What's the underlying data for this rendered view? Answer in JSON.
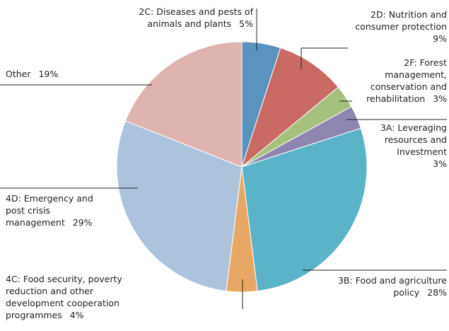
{
  "chart_data": {
    "type": "pie",
    "categories": [
      "2C: Diseases and pests of animals and plants",
      "2D: Nutrition and consumer protection",
      "2F: Forest management, conservation and rehabilitation",
      "3A: Leveraging resources and Investment",
      "3B: Food and agriculture policy",
      "4C: Food security, poverty reduction and other development cooperation programmes",
      "4D: Emergency and post crisis management",
      "Other"
    ],
    "values": [
      5,
      9,
      3,
      3,
      28,
      4,
      29,
      19
    ],
    "value_labels": [
      "5%",
      "9%",
      "3%",
      "3%",
      "28%",
      "4%",
      "29%",
      "19%"
    ],
    "colors": [
      "#5b93c0",
      "#c96b63",
      "#a5c07a",
      "#8f86b0",
      "#5bb3c8",
      "#e8a865",
      "#adc3dc",
      "#deb3b0"
    ]
  }
}
